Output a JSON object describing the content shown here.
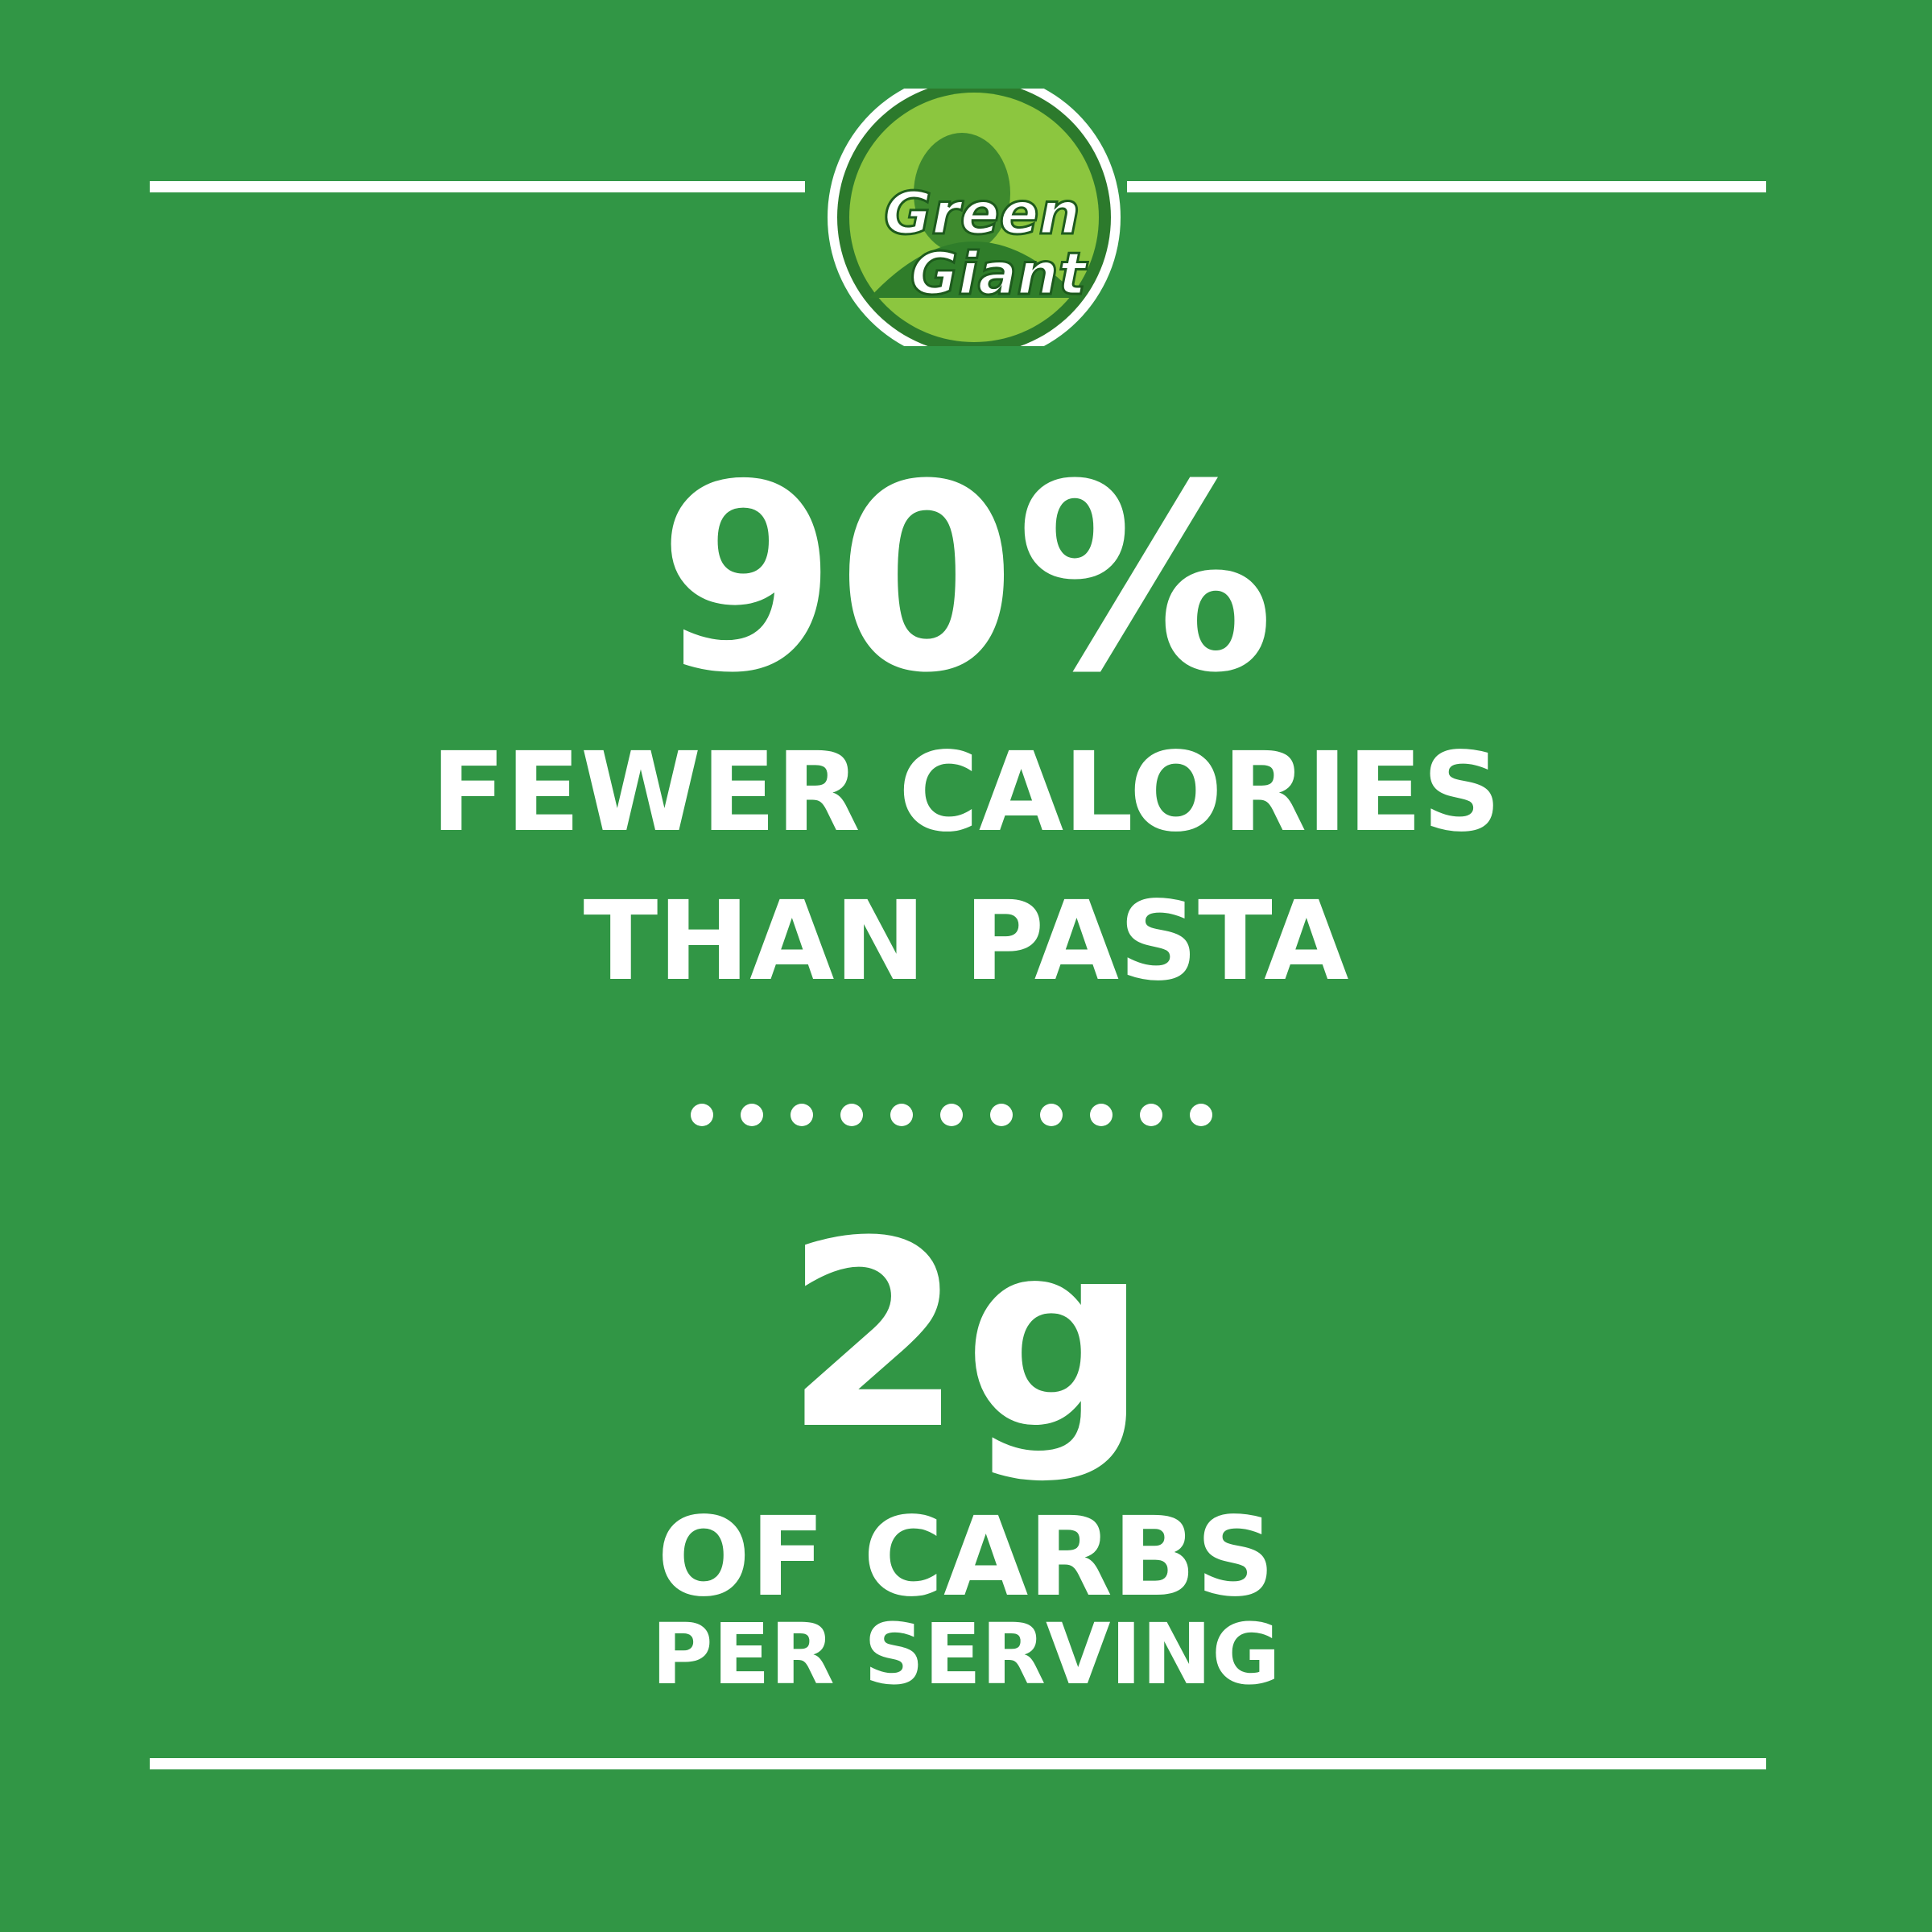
{
  "logo": {
    "line1": "Green",
    "line2": "Giant"
  },
  "stat1": {
    "value": "90%",
    "line1": "FEWER CALORIES",
    "line2": "THAN PASTA"
  },
  "stat2": {
    "value": "2g",
    "line1": "OF CARBS",
    "line2": "PER SERVING"
  }
}
